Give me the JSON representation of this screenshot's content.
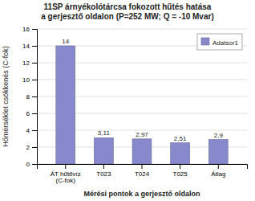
{
  "chart_data": {
    "type": "bar",
    "title": "11SP árnyékolótárcsa fokozott hűtés hatása\na gerjesztő oldalon (P=252 MW; Q = -10 Mvar)",
    "xlabel": "Mérési pontok a gerjesztő oldalon",
    "ylabel": "Hőmérséklet csökkenés (C-fok)",
    "categories": [
      "ÁT hűtővíz\n(C-fok)",
      "T023",
      "T024",
      "T025",
      "Átlag"
    ],
    "series": [
      {
        "name": "Adatsor1",
        "color": "#8888cc",
        "values": [
          14,
          3.11,
          2.97,
          2.51,
          2.9
        ],
        "value_labels": [
          "14",
          "3,11",
          "2,97",
          "2,51",
          "2,9"
        ]
      }
    ],
    "ylim": [
      0,
      16
    ],
    "yticks": [
      0,
      2,
      4,
      6,
      8,
      10,
      12,
      14,
      16
    ],
    "grid": true,
    "legend": "upper right",
    "data_labels": true
  }
}
